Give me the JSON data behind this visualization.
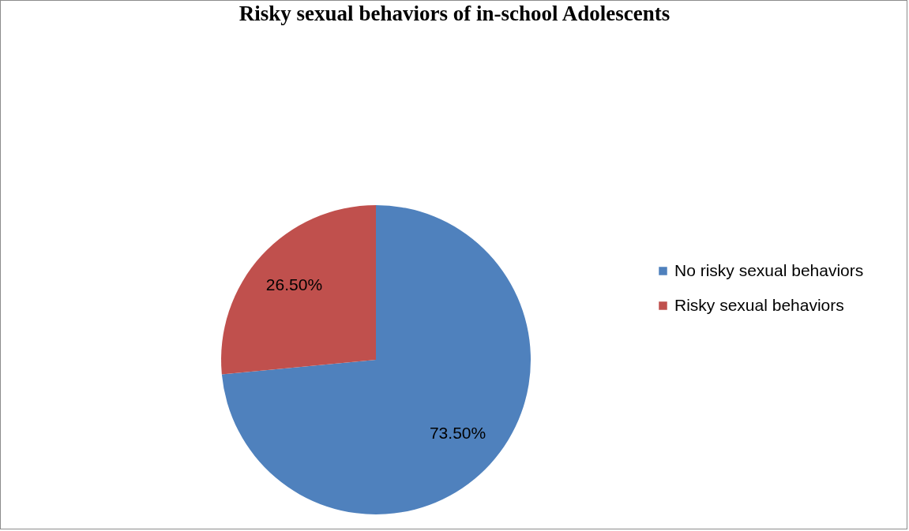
{
  "chart_data": {
    "type": "pie",
    "title": "Risky sexual behaviors of in-school Adolescents",
    "categories": [
      "No risky sexual behaviors",
      "Risky sexual behaviors"
    ],
    "values": [
      73.5,
      26.5
    ],
    "colors": [
      "#4f81bd",
      "#c0504d"
    ],
    "value_labels": [
      "73.50%",
      "26.50%"
    ],
    "legend": "right"
  }
}
